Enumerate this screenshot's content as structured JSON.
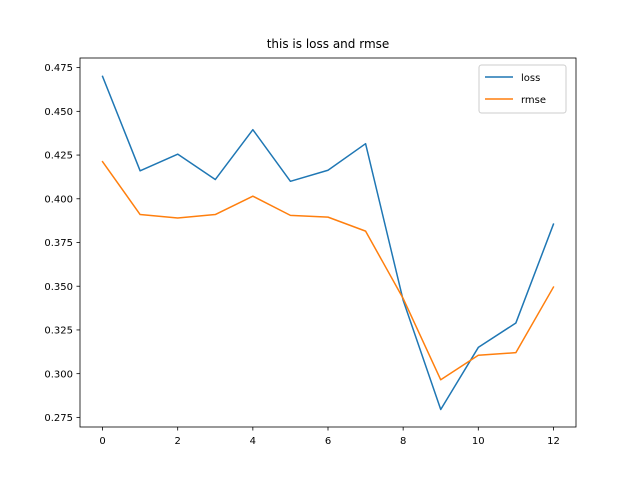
{
  "chart_data": {
    "type": "line",
    "title": "this is loss and rmse",
    "xlabel": "",
    "ylabel": "",
    "x": [
      0,
      1,
      2,
      3,
      4,
      5,
      6,
      7,
      8,
      9,
      10,
      11,
      12
    ],
    "xlim": [
      -0.6,
      12.6
    ],
    "ylim": [
      0.2695,
      0.4805
    ],
    "xticks": [
      0,
      2,
      4,
      6,
      8,
      10,
      12
    ],
    "xtick_labels": [
      "0",
      "2",
      "4",
      "6",
      "8",
      "10",
      "12"
    ],
    "yticks": [
      0.275,
      0.3,
      0.325,
      0.35,
      0.375,
      0.4,
      0.425,
      0.45,
      0.475
    ],
    "ytick_labels": [
      "0.275",
      "0.300",
      "0.325",
      "0.350",
      "0.375",
      "0.400",
      "0.425",
      "0.450",
      "0.475"
    ],
    "grid": false,
    "legend_position": "top-right",
    "series": [
      {
        "name": "loss",
        "color": "#1f77b4",
        "values": [
          0.47,
          0.416,
          0.4255,
          0.411,
          0.4395,
          0.41,
          0.4163,
          0.4315,
          0.342,
          0.2795,
          0.315,
          0.329,
          0.3855
        ]
      },
      {
        "name": "rmse",
        "color": "#ff7f0e",
        "values": [
          0.4212,
          0.391,
          0.389,
          0.391,
          0.4015,
          0.3905,
          0.3895,
          0.3815,
          0.343,
          0.2965,
          0.3105,
          0.312,
          0.3495
        ]
      }
    ]
  }
}
